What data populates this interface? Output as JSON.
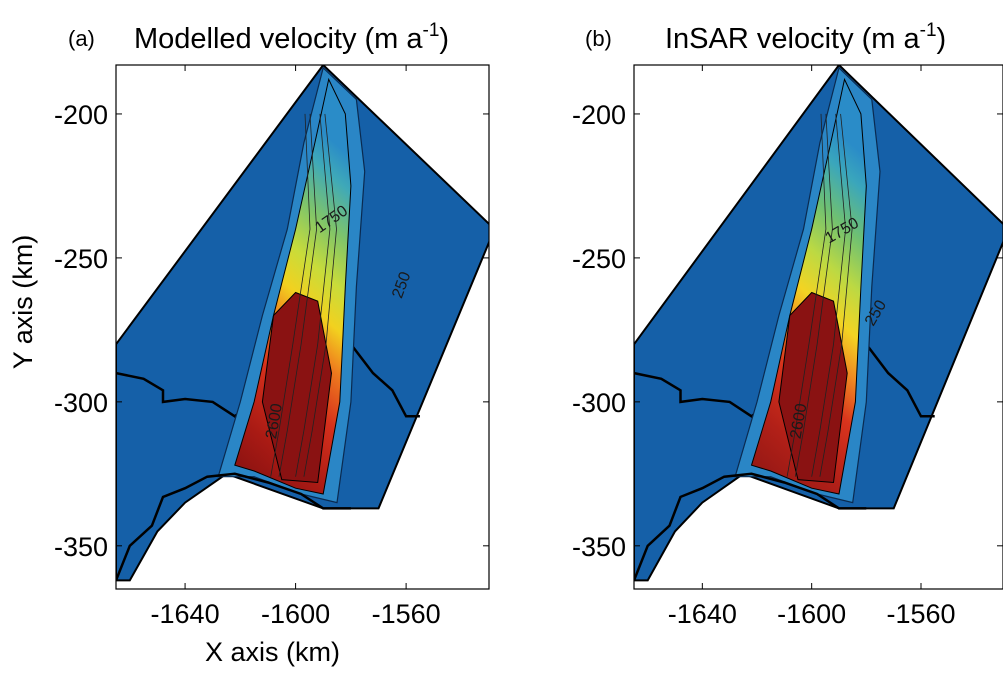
{
  "chart_data": [
    {
      "type": "heatmap",
      "panel_label": "(a)",
      "title": "Modelled velocity (m a",
      "title_superscript": "-1",
      "title_close": ")",
      "xlabel": "X axis (km)",
      "ylabel": "Y axis (km)",
      "x_ticks": [
        -1640,
        -1600,
        -1560
      ],
      "y_ticks": [
        -200,
        -250,
        -300,
        -350
      ],
      "xlim": [
        -1665,
        -1530
      ],
      "ylim": [
        -365,
        -183
      ],
      "contour_labels": [
        {
          "text": "1750",
          "x": -1586,
          "y": -238,
          "rotate": -35
        },
        {
          "text": "250",
          "x": -1560,
          "y": -260,
          "rotate": -70
        },
        {
          "text": "2600",
          "x": -1606,
          "y": -307,
          "rotate": -80
        }
      ],
      "colors": {
        "background": "#1560a8",
        "low": "#2b86c4",
        "mid": "#c8d83a",
        "high": "#d12a1e",
        "max": "#8a1212"
      }
    },
    {
      "type": "heatmap",
      "panel_label": "(b)",
      "title": "InSAR velocity (m a",
      "title_superscript": "-1",
      "title_close": ")",
      "xlabel": "",
      "ylabel": "",
      "x_ticks": [
        -1640,
        -1600,
        -1560
      ],
      "y_ticks": [
        -200,
        -250,
        -300,
        -350
      ],
      "xlim": [
        -1665,
        -1530
      ],
      "ylim": [
        -365,
        -183
      ],
      "contour_labels": [
        {
          "text": "1750",
          "x": -1588,
          "y": -242,
          "rotate": -30
        },
        {
          "text": "250",
          "x": -1575,
          "y": -270,
          "rotate": -60
        },
        {
          "text": "2600",
          "x": -1603,
          "y": -307,
          "rotate": -80
        }
      ],
      "colors": {
        "background": "#1560a8",
        "low": "#2b86c4",
        "mid": "#c8d83a",
        "high": "#d12a1e",
        "max": "#8a1212"
      }
    }
  ]
}
